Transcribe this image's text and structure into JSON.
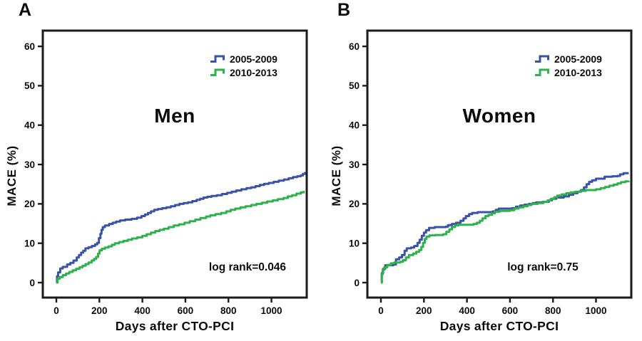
{
  "figure": {
    "background": "#ffffff",
    "axis_color": "#1b1b1b",
    "description": "Kaplan-Meier style cumulative MACE incidence curves after CTO-PCI, split by sex and treatment era"
  },
  "panel_letters": [
    "A",
    "B"
  ],
  "legend": {
    "position": "top-right",
    "items": [
      {
        "label": "2005-2009",
        "color": "#3a52a8"
      },
      {
        "label": "2010-2013",
        "color": "#2fb14e"
      }
    ]
  },
  "chart_data": [
    {
      "type": "line",
      "subtype": "step-after cumulative incidence (Kaplan-Meier)",
      "title": "Men",
      "annotation": "log rank=0.046",
      "xlabel": "Days after CTO-PCI",
      "ylabel": "MACE (%)",
      "xticks": [
        0,
        200,
        400,
        600,
        800,
        1000
      ],
      "yticks": [
        0,
        10,
        20,
        30,
        40,
        50,
        60
      ],
      "xlim": [
        -63,
        1164
      ],
      "ylim": [
        -3.8,
        64
      ],
      "grid": false,
      "legend_position": "top-right",
      "series": [
        {
          "name": "2005-2009",
          "color": "#3a52a8",
          "points": [
            [
              0,
              0
            ],
            [
              3,
              1.6
            ],
            [
              8,
              2.6
            ],
            [
              18,
              3.6
            ],
            [
              30,
              4
            ],
            [
              50,
              4.6
            ],
            [
              65,
              5
            ],
            [
              80,
              5.6
            ],
            [
              95,
              6.4
            ],
            [
              105,
              7
            ],
            [
              115,
              7.6
            ],
            [
              125,
              8.1
            ],
            [
              135,
              8.7
            ],
            [
              150,
              9
            ],
            [
              165,
              9.3
            ],
            [
              180,
              9.7
            ],
            [
              190,
              10.1
            ],
            [
              198,
              11.3
            ],
            [
              205,
              12.4
            ],
            [
              210,
              13.4
            ],
            [
              216,
              14.1
            ],
            [
              226,
              14.5
            ],
            [
              245,
              14.9
            ],
            [
              262,
              15.2
            ],
            [
              278,
              15.5
            ],
            [
              296,
              15.8
            ],
            [
              320,
              16
            ],
            [
              350,
              16.2
            ],
            [
              375,
              16.5
            ],
            [
              396,
              16.9
            ],
            [
              412,
              17.3
            ],
            [
              426,
              17.7
            ],
            [
              440,
              18.1
            ],
            [
              455,
              18.5
            ],
            [
              472,
              18.7
            ],
            [
              492,
              18.9
            ],
            [
              512,
              19.1
            ],
            [
              532,
              19.4
            ],
            [
              552,
              19.7
            ],
            [
              572,
              20
            ],
            [
              592,
              20.2
            ],
            [
              612,
              20.4
            ],
            [
              632,
              20.7
            ],
            [
              652,
              21
            ],
            [
              668,
              21.3
            ],
            [
              684,
              21.6
            ],
            [
              702,
              21.8
            ],
            [
              722,
              22
            ],
            [
              746,
              22.2
            ],
            [
              770,
              22.5
            ],
            [
              794,
              22.8
            ],
            [
              815,
              23.1
            ],
            [
              836,
              23.4
            ],
            [
              860,
              23.7
            ],
            [
              884,
              24
            ],
            [
              906,
              24.2
            ],
            [
              926,
              24.5
            ],
            [
              946,
              24.8
            ],
            [
              966,
              25.1
            ],
            [
              988,
              25.3
            ],
            [
              1010,
              25.6
            ],
            [
              1034,
              25.9
            ],
            [
              1058,
              26.2
            ],
            [
              1080,
              26.5
            ],
            [
              1100,
              26.8
            ],
            [
              1120,
              27
            ],
            [
              1136,
              27.2
            ],
            [
              1146,
              27.6
            ],
            [
              1156,
              28.1
            ]
          ]
        },
        {
          "name": "2010-2013",
          "color": "#2fb14e",
          "points": [
            [
              0,
              0
            ],
            [
              6,
              1
            ],
            [
              16,
              1.4
            ],
            [
              30,
              1.9
            ],
            [
              45,
              2.3
            ],
            [
              60,
              2.7
            ],
            [
              76,
              3.1
            ],
            [
              92,
              3.5
            ],
            [
              108,
              3.9
            ],
            [
              122,
              4.3
            ],
            [
              136,
              4.7
            ],
            [
              150,
              5.1
            ],
            [
              164,
              5.6
            ],
            [
              175,
              6
            ],
            [
              185,
              6.5
            ],
            [
              194,
              7.4
            ],
            [
              201,
              8.2
            ],
            [
              212,
              8.6
            ],
            [
              226,
              8.9
            ],
            [
              242,
              9.2
            ],
            [
              258,
              9.6
            ],
            [
              272,
              10
            ],
            [
              292,
              10.3
            ],
            [
              312,
              10.6
            ],
            [
              332,
              10.9
            ],
            [
              352,
              11.2
            ],
            [
              376,
              11.5
            ],
            [
              400,
              11.9
            ],
            [
              420,
              12.3
            ],
            [
              440,
              12.7
            ],
            [
              460,
              13.1
            ],
            [
              480,
              13.4
            ],
            [
              500,
              13.7
            ],
            [
              522,
              14.1
            ],
            [
              546,
              14.5
            ],
            [
              570,
              14.8
            ],
            [
              596,
              15.2
            ],
            [
              620,
              15.6
            ],
            [
              646,
              16
            ],
            [
              670,
              16.4
            ],
            [
              696,
              16.8
            ],
            [
              716,
              17.1
            ],
            [
              740,
              17.4
            ],
            [
              766,
              17.7
            ],
            [
              790,
              18.1
            ],
            [
              810,
              18.5
            ],
            [
              832,
              18.8
            ],
            [
              856,
              19.1
            ],
            [
              880,
              19.4
            ],
            [
              906,
              19.7
            ],
            [
              930,
              20
            ],
            [
              956,
              20.3
            ],
            [
              980,
              20.6
            ],
            [
              1006,
              20.9
            ],
            [
              1030,
              21.2
            ],
            [
              1056,
              21.5
            ],
            [
              1076,
              21.9
            ],
            [
              1096,
              22.2
            ],
            [
              1116,
              22.6
            ],
            [
              1136,
              22.9
            ],
            [
              1150,
              23.3
            ]
          ]
        }
      ]
    },
    {
      "type": "line",
      "subtype": "step-after cumulative incidence (Kaplan-Meier)",
      "title": "Women",
      "annotation": "log rank=0.75",
      "xlabel": "Days after CTO-PCI",
      "ylabel": "MACE (%)",
      "xticks": [
        0,
        200,
        400,
        600,
        800,
        1000
      ],
      "yticks": [
        0,
        10,
        20,
        30,
        40,
        50,
        60
      ],
      "xlim": [
        -63,
        1164
      ],
      "ylim": [
        -3.8,
        64
      ],
      "grid": false,
      "legend_position": "top-right",
      "series": [
        {
          "name": "2005-2009",
          "color": "#3a52a8",
          "points": [
            [
              0,
              0
            ],
            [
              4,
              2.4
            ],
            [
              10,
              3.5
            ],
            [
              20,
              4.4
            ],
            [
              58,
              4.6
            ],
            [
              70,
              5.9
            ],
            [
              85,
              6.4
            ],
            [
              98,
              7
            ],
            [
              110,
              8.1
            ],
            [
              120,
              8.7
            ],
            [
              140,
              8.9
            ],
            [
              155,
              9.3
            ],
            [
              170,
              10.1
            ],
            [
              180,
              10.9
            ],
            [
              190,
              11.9
            ],
            [
              200,
              12.7
            ],
            [
              210,
              13.3
            ],
            [
              224,
              13.9
            ],
            [
              250,
              14.1
            ],
            [
              302,
              14.2
            ],
            [
              312,
              14.6
            ],
            [
              330,
              14.9
            ],
            [
              350,
              15.2
            ],
            [
              370,
              15.7
            ],
            [
              384,
              16.3
            ],
            [
              395,
              16.9
            ],
            [
              410,
              17.4
            ],
            [
              424,
              17.7
            ],
            [
              450,
              17.9
            ],
            [
              520,
              18.1
            ],
            [
              534,
              18.5
            ],
            [
              548,
              18.8
            ],
            [
              610,
              18.9
            ],
            [
              628,
              19.3
            ],
            [
              648,
              19.6
            ],
            [
              668,
              19.8
            ],
            [
              688,
              20
            ],
            [
              706,
              20.2
            ],
            [
              722,
              20.4
            ],
            [
              752,
              20.5
            ],
            [
              780,
              20.9
            ],
            [
              795,
              21.3
            ],
            [
              815,
              21.6
            ],
            [
              850,
              21.9
            ],
            [
              874,
              22.3
            ],
            [
              894,
              22.7
            ],
            [
              914,
              23.1
            ],
            [
              930,
              23.5
            ],
            [
              944,
              24.2
            ],
            [
              956,
              25
            ],
            [
              968,
              25.6
            ],
            [
              982,
              26
            ],
            [
              1000,
              26.4
            ],
            [
              1040,
              26.9
            ],
            [
              1075,
              27
            ],
            [
              1100,
              27.1
            ],
            [
              1112,
              27.5
            ],
            [
              1128,
              27.8
            ],
            [
              1152,
              27.8
            ]
          ]
        },
        {
          "name": "2010-2013",
          "color": "#2fb14e",
          "points": [
            [
              0,
              0
            ],
            [
              4,
              2.1
            ],
            [
              8,
              3.3
            ],
            [
              16,
              3.9
            ],
            [
              30,
              4.5
            ],
            [
              46,
              4.9
            ],
            [
              62,
              5.1
            ],
            [
              90,
              5.3
            ],
            [
              102,
              5.7
            ],
            [
              116,
              6.4
            ],
            [
              130,
              7
            ],
            [
              150,
              7.4
            ],
            [
              164,
              7.8
            ],
            [
              178,
              8.3
            ],
            [
              188,
              9.1
            ],
            [
              196,
              10.1
            ],
            [
              204,
              11.1
            ],
            [
              212,
              11.7
            ],
            [
              226,
              12
            ],
            [
              252,
              12.1
            ],
            [
              290,
              12.3
            ],
            [
              304,
              12.9
            ],
            [
              318,
              13.5
            ],
            [
              330,
              14.1
            ],
            [
              344,
              14.5
            ],
            [
              360,
              14.7
            ],
            [
              430,
              14.9
            ],
            [
              446,
              15.2
            ],
            [
              460,
              15.7
            ],
            [
              472,
              16.3
            ],
            [
              486,
              16.9
            ],
            [
              500,
              17.2
            ],
            [
              516,
              17.6
            ],
            [
              530,
              18
            ],
            [
              552,
              18.2
            ],
            [
              600,
              18.4
            ],
            [
              620,
              18.8
            ],
            [
              640,
              19.1
            ],
            [
              662,
              19.4
            ],
            [
              682,
              19.7
            ],
            [
              700,
              20
            ],
            [
              730,
              20.2
            ],
            [
              755,
              20.5
            ],
            [
              775,
              20.9
            ],
            [
              790,
              21.3
            ],
            [
              806,
              21.7
            ],
            [
              820,
              22.1
            ],
            [
              840,
              22.4
            ],
            [
              862,
              22.7
            ],
            [
              882,
              22.9
            ],
            [
              902,
              23.1
            ],
            [
              926,
              23.3
            ],
            [
              952,
              23.5
            ],
            [
              1000,
              23.7
            ],
            [
              1022,
              24
            ],
            [
              1042,
              24.3
            ],
            [
              1062,
              24.6
            ],
            [
              1082,
              24.9
            ],
            [
              1100,
              25.2
            ],
            [
              1116,
              25.5
            ],
            [
              1136,
              25.7
            ],
            [
              1152,
              25.8
            ]
          ]
        }
      ]
    }
  ]
}
